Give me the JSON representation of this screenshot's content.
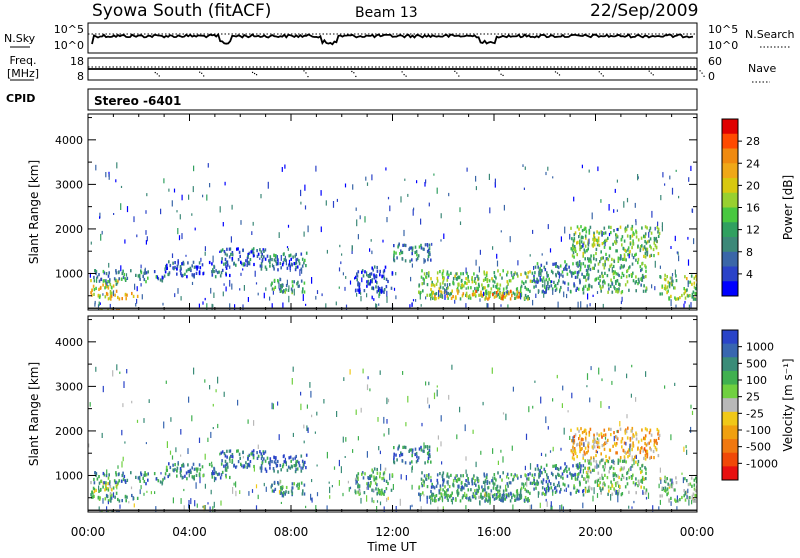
{
  "header": {
    "title": "Syowa South (fitACF)",
    "beam": "Beam 13",
    "date": "22/Sep/2009"
  },
  "top_panels": {
    "nsky_label": "N.Sky",
    "nsky_ticks": [
      "10^5",
      "10^0"
    ],
    "nsearch_label": "N.Search",
    "nsearch_ticks": [
      "10^5",
      "10^0"
    ],
    "freq_label_1": "Freq.",
    "freq_label_2": "[MHz]",
    "freq_ticks": [
      "18",
      "8"
    ],
    "nave_label": "Nave",
    "nave_ticks": [
      "60",
      "0"
    ],
    "cpid_label": "CPID",
    "cpid_value": "Stereo  -6401"
  },
  "chart_data": [
    {
      "type": "heatmap",
      "name": "power",
      "ylabel": "Slant Range [km]",
      "ylim": [
        180,
        4580
      ],
      "yticks": [
        1000,
        2000,
        3000,
        4000
      ],
      "xlim": [
        0,
        24
      ],
      "colorbar": {
        "label": "Power [dB]",
        "ticks": [
          "28",
          "24",
          "20",
          "16",
          "12",
          "8",
          "4"
        ],
        "colors": [
          "#e00000",
          "#ff4a00",
          "#f08a10",
          "#f0a818",
          "#d8c810",
          "#98d030",
          "#48c840",
          "#30a060",
          "#3c8878",
          "#3a66a8",
          "#2a42c8",
          "#0000ff"
        ]
      },
      "bands": [
        {
          "x0": 0.0,
          "x1": 1.6,
          "y0": 180,
          "y1": 240,
          "level": 0.7
        },
        {
          "x0": 0.0,
          "x1": 2.0,
          "y0": 450,
          "y1": 620,
          "level": 0.65
        },
        {
          "x0": 0.0,
          "x1": 1.2,
          "y0": 620,
          "y1": 900,
          "level": 0.6
        },
        {
          "x0": 0.2,
          "x1": 3.0,
          "y0": 850,
          "y1": 1100,
          "level": 0.3
        },
        {
          "x0": 3.0,
          "x1": 5.6,
          "y0": 950,
          "y1": 1300,
          "level": 0.2
        },
        {
          "x0": 5.2,
          "x1": 7.0,
          "y0": 1200,
          "y1": 1600,
          "level": 0.2
        },
        {
          "x0": 6.8,
          "x1": 8.6,
          "y0": 1100,
          "y1": 1500,
          "level": 0.25
        },
        {
          "x0": 7.0,
          "x1": 8.5,
          "y0": 600,
          "y1": 900,
          "level": 0.35
        },
        {
          "x0": 10.5,
          "x1": 12.0,
          "y0": 600,
          "y1": 1200,
          "level": 0.15
        },
        {
          "x0": 12.0,
          "x1": 13.5,
          "y0": 1300,
          "y1": 1700,
          "level": 0.3
        },
        {
          "x0": 13.0,
          "x1": 17.5,
          "y0": 450,
          "y1": 1100,
          "level": 0.45
        },
        {
          "x0": 13.5,
          "x1": 17.0,
          "y0": 450,
          "y1": 650,
          "level": 0.7
        },
        {
          "x0": 17.5,
          "x1": 19.5,
          "y0": 600,
          "y1": 1300,
          "level": 0.3
        },
        {
          "x0": 19.0,
          "x1": 22.5,
          "y0": 1400,
          "y1": 2100,
          "level": 0.45
        },
        {
          "x0": 19.5,
          "x1": 22.0,
          "y0": 600,
          "y1": 1400,
          "level": 0.4
        },
        {
          "x0": 22.5,
          "x1": 24.0,
          "y0": 450,
          "y1": 1000,
          "level": 0.5
        }
      ]
    },
    {
      "type": "heatmap",
      "name": "velocity",
      "ylabel": "Slant Range [km]",
      "ylim": [
        180,
        4580
      ],
      "yticks": [
        1000,
        2000,
        3000,
        4000
      ],
      "xlim": [
        0,
        24
      ],
      "xticks": [
        "00:00",
        "04:00",
        "08:00",
        "12:00",
        "16:00",
        "20:00",
        "00:00"
      ],
      "xlabel": "Time UT",
      "colorbar": {
        "label": "Velocity [m s⁻¹]",
        "ticks": [
          "1000",
          "500",
          "100",
          "25",
          "-25",
          "-100",
          "-500",
          "-1000"
        ],
        "colors": [
          "#2a44c8",
          "#3866b0",
          "#3a8c78",
          "#40b050",
          "#70d040",
          "#b8b8b8",
          "#f0c818",
          "#f0a010",
          "#f07810",
          "#f04808",
          "#e81010"
        ]
      },
      "bands": [
        {
          "x0": 0.0,
          "x1": 1.6,
          "y0": 180,
          "y1": 240,
          "level": 0.75
        },
        {
          "x0": 0.0,
          "x1": 2.0,
          "y0": 450,
          "y1": 620,
          "level": 0.7
        },
        {
          "x0": 0.0,
          "x1": 1.2,
          "y0": 620,
          "y1": 900,
          "level": 0.55
        },
        {
          "x0": 0.2,
          "x1": 3.0,
          "y0": 850,
          "y1": 1100,
          "level": 0.8
        },
        {
          "x0": 3.0,
          "x1": 5.6,
          "y0": 950,
          "y1": 1300,
          "level": 0.8
        },
        {
          "x0": 5.2,
          "x1": 7.0,
          "y0": 1200,
          "y1": 1600,
          "level": 0.85
        },
        {
          "x0": 6.8,
          "x1": 8.6,
          "y0": 1100,
          "y1": 1500,
          "level": 0.85
        },
        {
          "x0": 7.0,
          "x1": 8.5,
          "y0": 600,
          "y1": 900,
          "level": 0.75
        },
        {
          "x0": 10.5,
          "x1": 12.0,
          "y0": 600,
          "y1": 1200,
          "level": 0.7
        },
        {
          "x0": 12.0,
          "x1": 13.5,
          "y0": 1300,
          "y1": 1700,
          "level": 0.85
        },
        {
          "x0": 13.0,
          "x1": 17.5,
          "y0": 450,
          "y1": 1100,
          "level": 0.75
        },
        {
          "x0": 13.5,
          "x1": 17.0,
          "y0": 450,
          "y1": 650,
          "level": 0.7
        },
        {
          "x0": 17.5,
          "x1": 19.5,
          "y0": 600,
          "y1": 1300,
          "level": 0.8
        },
        {
          "x0": 19.0,
          "x1": 22.5,
          "y0": 1400,
          "y1": 2100,
          "level": 0.35
        },
        {
          "x0": 19.5,
          "x1": 22.0,
          "y0": 600,
          "y1": 1400,
          "level": 0.6
        },
        {
          "x0": 22.5,
          "x1": 24.0,
          "y0": 450,
          "y1": 1000,
          "level": 0.6
        }
      ]
    }
  ]
}
